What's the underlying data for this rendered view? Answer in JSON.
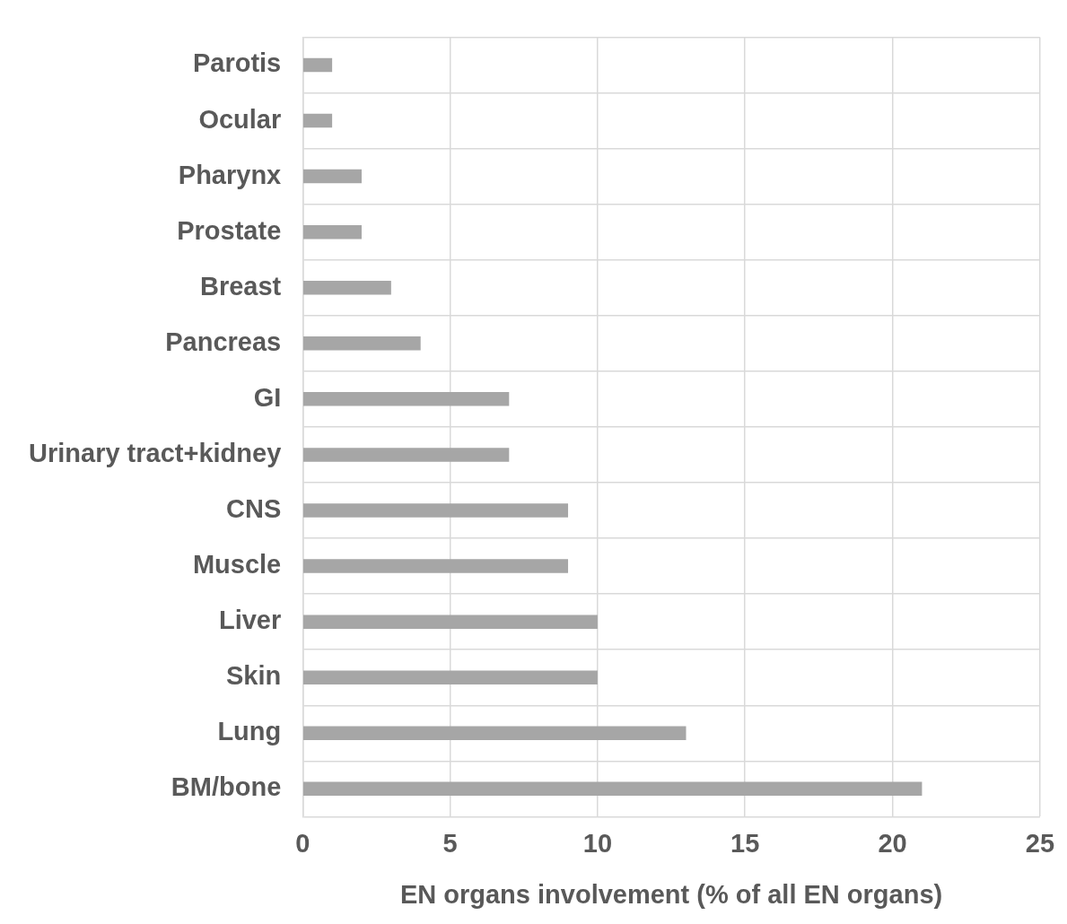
{
  "chart_data": {
    "type": "bar",
    "orientation": "horizontal",
    "xlabel": "EN organs involvement (% of all EN organs)",
    "categories": [
      "Parotis",
      "Ocular",
      "Pharynx",
      "Prostate",
      "Breast",
      "Pancreas",
      "GI",
      "Urinary tract+kidney",
      "CNS",
      "Muscle",
      "Liver",
      "Skin",
      "Lung",
      "BM/bone"
    ],
    "values": [
      1,
      1,
      2,
      2,
      3,
      4,
      7,
      7,
      9,
      9,
      10,
      10,
      13,
      21
    ],
    "color": "#a6a6a6",
    "xlim": [
      0,
      25
    ],
    "xticks": [
      0,
      5,
      10,
      15,
      20,
      25
    ],
    "grid": true,
    "legend": false
  }
}
